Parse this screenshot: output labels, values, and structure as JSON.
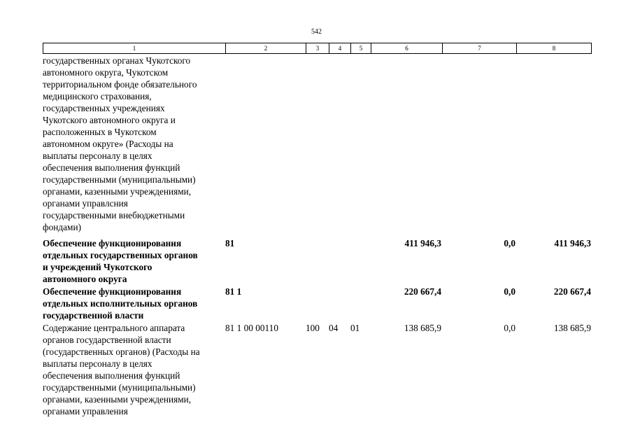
{
  "page_number": "542",
  "header_columns": [
    "1",
    "2",
    "3",
    "4",
    "5",
    "6",
    "7",
    "8"
  ],
  "rows": [
    {
      "text_lines": [
        "государственных органах Чукотского",
        "автономного округа, Чукотском",
        "территориальном фонде обязательного",
        "медицинского страхования,",
        "государственных учреждениях",
        "Чукотского автономного округа и",
        "расположенных в Чукотском",
        "автономном округе» (Расходы на",
        "выплаты персоналу в целях",
        "обеспечения выполнения функций",
        "государственными (муниципальными)",
        "органами, казенными учреждениями,",
        "органами управлсния",
        "государственными внебюджетными",
        "фондами)"
      ],
      "code": "",
      "vr": "",
      "rz": "",
      "pr": "",
      "sum1": "",
      "sum2": "",
      "sum3": ""
    },
    {
      "bold": true,
      "text_lines": [
        "Обеспечение функционирования",
        "отдельных государственных органов",
        "и учреждений Чукотского",
        "автономного округа"
      ],
      "code": "81",
      "vr": "",
      "rz": "",
      "pr": "",
      "sum1": "411 946,3",
      "sum2": "0,0",
      "sum3": "411 946,3"
    },
    {
      "bold": true,
      "text_lines": [
        "Обеспечение функционирования",
        "отдельных исполнительных органов",
        "государственной власти"
      ],
      "code": "81 1",
      "vr": "",
      "rz": "",
      "pr": "",
      "sum1": "220 667,4",
      "sum2": "0,0",
      "sum3": "220 667,4"
    },
    {
      "text_lines": [
        "Содержание центрального аппарата",
        "органов государственной власти",
        "(государственных органов) (Расходы на",
        "выплаты персоналу в целях",
        "обеспечения выполнения функций",
        "государственными (муниципальными)",
        "органами, казенными учреждениями,",
        "органами управления"
      ],
      "code": "81 1 00 00110",
      "vr": "100",
      "rz": "04",
      "pr": "01",
      "sum1": "138 685,9",
      "sum2": "0,0",
      "sum3": "138 685,9"
    }
  ]
}
